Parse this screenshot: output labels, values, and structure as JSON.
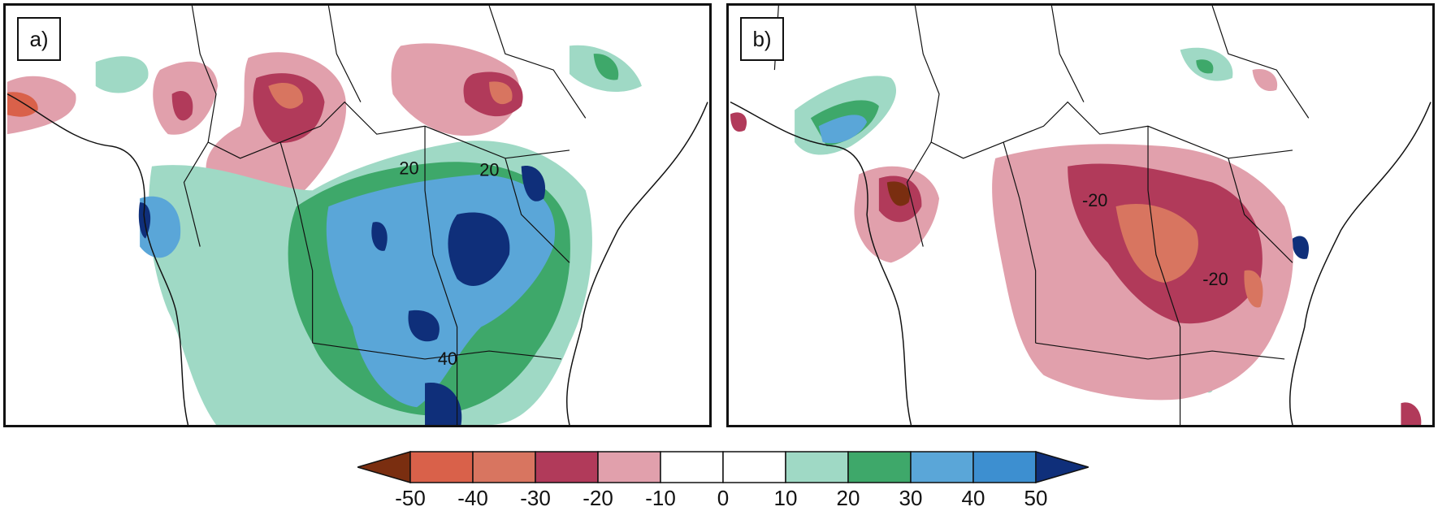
{
  "panels": [
    {
      "label": "a)",
      "contour_labels": [
        "20",
        "20",
        "40"
      ]
    },
    {
      "label": "b)",
      "contour_labels": [
        "-20",
        "-20"
      ]
    }
  ],
  "colorbar": {
    "ticks": [
      "-50",
      "-40",
      "-30",
      "-20",
      "-10",
      "0",
      "10",
      "20",
      "30",
      "40",
      "50"
    ],
    "colors": [
      "#7a2e10",
      "#d9614a",
      "#d87560",
      "#b13a5a",
      "#e1a0ac",
      "#ffffff",
      "#ffffff",
      "#9fd9c5",
      "#3ea86a",
      "#5aa6d8",
      "#3d8fd0",
      "#0f2f7a"
    ]
  }
}
